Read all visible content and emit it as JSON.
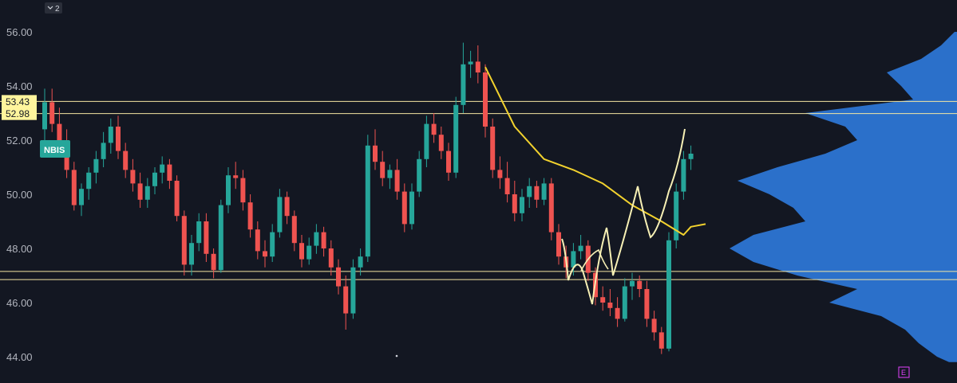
{
  "toolbar": {
    "collapse_chip": "2"
  },
  "ticker": {
    "symbol": "NBIS",
    "color": "#26a69a"
  },
  "colors": {
    "background": "#131722",
    "up": "#26a69a",
    "down": "#ef5350",
    "level_line": "#f5e7a3",
    "level_label_bg": "#fff59d",
    "vwap": "#f2d22e",
    "drawing": "#f7f0b5",
    "volume_profile": "#2f7de1",
    "event_marker": "#e040fb"
  },
  "event_marker": {
    "label": "E"
  },
  "chart_data": {
    "type": "candlestick",
    "y_axis": {
      "ticks": [
        "56.00",
        "54.00",
        "52.00",
        "50.00",
        "48.00",
        "46.00",
        "44.00"
      ],
      "ylim": [
        43.6,
        56.6
      ]
    },
    "horizontal_levels": [
      {
        "value": 53.43,
        "label": "53.43"
      },
      {
        "value": 52.98,
        "label": "52.98"
      },
      {
        "value": 47.15
      },
      {
        "value": 46.85
      }
    ],
    "candles": [
      [
        52.4,
        53.9,
        52.0,
        53.4
      ],
      [
        53.4,
        53.9,
        52.3,
        52.6
      ],
      [
        52.6,
        53.2,
        51.8,
        52.0
      ],
      [
        52.0,
        52.4,
        50.6,
        50.9
      ],
      [
        50.9,
        51.2,
        49.4,
        49.6
      ],
      [
        49.6,
        50.4,
        49.2,
        50.2
      ],
      [
        50.2,
        51.0,
        49.8,
        50.8
      ],
      [
        50.8,
        51.6,
        50.4,
        51.3
      ],
      [
        51.3,
        52.3,
        51.0,
        51.9
      ],
      [
        51.9,
        52.8,
        51.5,
        52.5
      ],
      [
        52.5,
        52.9,
        51.3,
        51.6
      ],
      [
        51.6,
        51.9,
        50.6,
        50.9
      ],
      [
        50.9,
        51.3,
        50.1,
        50.4
      ],
      [
        50.4,
        50.8,
        49.5,
        49.8
      ],
      [
        49.8,
        50.6,
        49.5,
        50.3
      ],
      [
        50.3,
        51.0,
        50.0,
        50.8
      ],
      [
        50.8,
        51.4,
        50.4,
        51.1
      ],
      [
        51.1,
        51.3,
        50.2,
        50.5
      ],
      [
        50.5,
        50.7,
        49.0,
        49.2
      ],
      [
        49.2,
        49.4,
        47.0,
        47.4
      ],
      [
        47.4,
        48.5,
        47.0,
        48.2
      ],
      [
        48.2,
        49.3,
        47.9,
        49.0
      ],
      [
        49.0,
        49.3,
        47.5,
        47.8
      ],
      [
        47.8,
        48.0,
        46.9,
        47.2
      ],
      [
        47.2,
        49.8,
        47.1,
        49.6
      ],
      [
        49.6,
        51.0,
        49.3,
        50.7
      ],
      [
        50.7,
        51.2,
        50.2,
        50.6
      ],
      [
        50.6,
        50.9,
        49.4,
        49.7
      ],
      [
        49.7,
        50.0,
        48.4,
        48.7
      ],
      [
        48.7,
        49.0,
        47.6,
        47.9
      ],
      [
        47.9,
        48.3,
        47.3,
        47.7
      ],
      [
        47.7,
        48.9,
        47.5,
        48.6
      ],
      [
        48.6,
        50.2,
        48.4,
        49.9
      ],
      [
        49.9,
        50.1,
        48.9,
        49.2
      ],
      [
        49.2,
        49.4,
        47.9,
        48.2
      ],
      [
        48.2,
        48.5,
        47.3,
        47.6
      ],
      [
        47.6,
        48.4,
        47.4,
        48.1
      ],
      [
        48.1,
        48.9,
        47.8,
        48.6
      ],
      [
        48.6,
        48.8,
        47.7,
        48.0
      ],
      [
        48.0,
        48.3,
        47.0,
        47.3
      ],
      [
        47.3,
        47.6,
        46.3,
        46.6
      ],
      [
        46.6,
        47.0,
        45.0,
        45.6
      ],
      [
        45.6,
        47.6,
        45.4,
        47.3
      ],
      [
        47.3,
        48.0,
        47.0,
        47.7
      ],
      [
        47.7,
        52.2,
        47.5,
        51.8
      ],
      [
        51.8,
        52.4,
        50.9,
        51.2
      ],
      [
        51.2,
        51.6,
        50.3,
        50.6
      ],
      [
        50.6,
        51.1,
        50.2,
        50.9
      ],
      [
        50.9,
        51.3,
        49.8,
        50.1
      ],
      [
        50.1,
        50.4,
        48.6,
        48.9
      ],
      [
        48.9,
        50.4,
        48.7,
        50.1
      ],
      [
        50.1,
        51.6,
        49.9,
        51.3
      ],
      [
        51.3,
        52.9,
        51.0,
        52.6
      ],
      [
        52.6,
        53.0,
        51.9,
        52.2
      ],
      [
        52.2,
        52.5,
        51.3,
        51.6
      ],
      [
        51.6,
        51.9,
        50.5,
        50.8
      ],
      [
        50.8,
        53.6,
        50.6,
        53.3
      ],
      [
        53.3,
        55.6,
        53.0,
        54.8
      ],
      [
        54.8,
        55.3,
        54.3,
        54.9
      ],
      [
        54.9,
        55.5,
        54.1,
        54.5
      ],
      [
        54.5,
        54.8,
        52.1,
        52.5
      ],
      [
        52.5,
        52.8,
        50.6,
        50.9
      ],
      [
        50.9,
        51.4,
        50.2,
        50.6
      ],
      [
        50.6,
        51.2,
        49.7,
        50.0
      ],
      [
        50.0,
        50.5,
        49.0,
        49.3
      ],
      [
        49.3,
        50.2,
        49.0,
        49.9
      ],
      [
        49.9,
        50.6,
        49.5,
        50.3
      ],
      [
        50.3,
        50.5,
        49.5,
        49.8
      ],
      [
        49.8,
        50.6,
        49.6,
        50.4
      ],
      [
        50.4,
        50.6,
        48.3,
        48.6
      ],
      [
        48.6,
        48.9,
        47.4,
        47.7
      ],
      [
        47.7,
        48.1,
        46.9,
        47.3
      ],
      [
        47.3,
        48.2,
        47.0,
        47.9
      ],
      [
        47.9,
        48.5,
        47.6,
        48.1
      ],
      [
        48.1,
        48.3,
        46.8,
        47.1
      ],
      [
        47.1,
        47.3,
        45.9,
        46.2
      ],
      [
        46.2,
        46.6,
        45.7,
        46.0
      ],
      [
        46.0,
        46.5,
        45.5,
        45.8
      ],
      [
        45.8,
        46.2,
        45.1,
        45.4
      ],
      [
        45.4,
        46.9,
        45.3,
        46.6
      ],
      [
        46.6,
        47.1,
        46.1,
        46.8
      ],
      [
        46.8,
        47.0,
        46.2,
        46.5
      ],
      [
        46.5,
        46.8,
        45.1,
        45.4
      ],
      [
        45.4,
        45.7,
        44.6,
        44.9
      ],
      [
        44.9,
        45.1,
        44.1,
        44.3
      ],
      [
        44.3,
        48.6,
        44.2,
        48.3
      ],
      [
        48.3,
        50.4,
        48.0,
        50.1
      ],
      [
        50.1,
        51.6,
        49.8,
        51.3
      ],
      [
        51.3,
        51.8,
        50.9,
        51.5
      ]
    ],
    "vwap_line": [
      [
        60,
        54.7
      ],
      [
        64,
        52.5
      ],
      [
        68,
        51.3
      ],
      [
        72,
        50.9
      ],
      [
        76,
        50.4
      ],
      [
        80,
        49.6
      ],
      [
        84,
        49.0
      ],
      [
        87,
        48.5
      ],
      [
        88,
        48.8
      ],
      [
        90,
        48.9
      ]
    ],
    "volume_profile": [
      [
        56.0,
        3
      ],
      [
        55.5,
        20
      ],
      [
        55.0,
        45
      ],
      [
        54.5,
        88
      ],
      [
        54.0,
        70
      ],
      [
        53.5,
        55
      ],
      [
        53.0,
        190
      ],
      [
        52.5,
        140
      ],
      [
        52.0,
        125
      ],
      [
        51.5,
        165
      ],
      [
        51.0,
        225
      ],
      [
        50.5,
        275
      ],
      [
        50.0,
        235
      ],
      [
        49.5,
        205
      ],
      [
        49.0,
        190
      ],
      [
        48.5,
        255
      ],
      [
        48.0,
        285
      ],
      [
        47.5,
        255
      ],
      [
        47.0,
        200
      ],
      [
        46.5,
        125
      ],
      [
        46.0,
        160
      ],
      [
        45.5,
        95
      ],
      [
        45.0,
        65
      ],
      [
        44.5,
        48
      ],
      [
        44.0,
        25
      ],
      [
        43.8,
        10
      ]
    ]
  }
}
